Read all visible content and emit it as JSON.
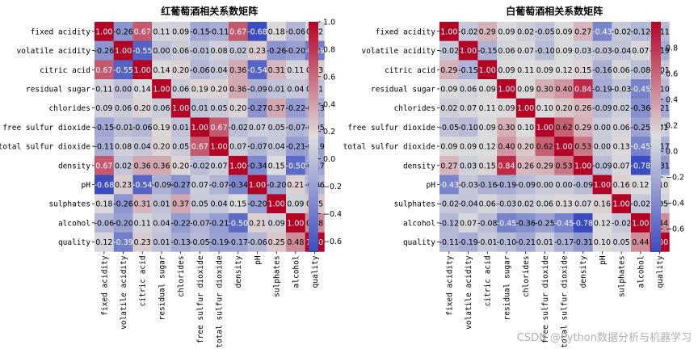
{
  "watermark": "CSDN @Python数据分析与机器学习",
  "colors": {
    "low": "#3b4cc0",
    "mid": "#dddddd",
    "high": "#b40426"
  },
  "chart_data": [
    {
      "type": "heatmap",
      "title": "红葡萄酒相关系数矩阵",
      "labels": [
        "fixed acidity",
        "volatile acidity",
        "citric acid",
        "residual sugar",
        "chlorides",
        "free sulfur dioxide",
        "total sulfur dioxide",
        "density",
        "pH",
        "sulphates",
        "alcohol",
        "quality"
      ],
      "matrix": [
        [
          1.0,
          -0.26,
          0.67,
          0.11,
          0.09,
          -0.15,
          -0.11,
          0.67,
          -0.68,
          0.18,
          -0.06,
          0.12
        ],
        [
          -0.26,
          1.0,
          -0.55,
          0.0,
          0.06,
          -0.01,
          0.08,
          0.02,
          0.23,
          -0.26,
          -0.2,
          -0.39
        ],
        [
          0.67,
          -0.55,
          1.0,
          0.14,
          0.2,
          -0.06,
          0.04,
          0.36,
          -0.54,
          0.31,
          0.11,
          0.23
        ],
        [
          0.11,
          0.0,
          0.14,
          1.0,
          0.06,
          0.19,
          0.2,
          0.36,
          -0.09,
          0.01,
          0.04,
          0.01
        ],
        [
          0.09,
          0.06,
          0.2,
          0.06,
          1.0,
          0.01,
          0.05,
          0.2,
          -0.27,
          0.37,
          -0.22,
          -0.13
        ],
        [
          -0.15,
          -0.01,
          -0.06,
          0.19,
          0.01,
          1.0,
          0.67,
          -0.02,
          0.07,
          0.05,
          -0.07,
          -0.05
        ],
        [
          -0.11,
          0.08,
          0.04,
          0.2,
          0.05,
          0.67,
          1.0,
          0.07,
          -0.07,
          0.04,
          -0.21,
          -0.19
        ],
        [
          0.67,
          0.02,
          0.36,
          0.36,
          0.2,
          -0.02,
          0.07,
          1.0,
          -0.34,
          0.15,
          -0.5,
          -0.17
        ],
        [
          -0.68,
          0.23,
          -0.54,
          -0.09,
          -0.27,
          0.07,
          -0.07,
          -0.34,
          1.0,
          -0.2,
          0.21,
          -0.06
        ],
        [
          0.18,
          -0.26,
          0.31,
          0.01,
          0.37,
          0.05,
          0.04,
          0.15,
          -0.2,
          1.0,
          0.09,
          0.25
        ],
        [
          -0.06,
          -0.2,
          0.11,
          0.04,
          -0.22,
          -0.07,
          -0.21,
          -0.5,
          0.21,
          0.09,
          1.0,
          0.48
        ],
        [
          0.12,
          -0.39,
          0.23,
          0.01,
          -0.13,
          -0.05,
          -0.19,
          -0.17,
          -0.06,
          0.25,
          0.48,
          1.0
        ]
      ],
      "vmin": -0.68,
      "vmax": 1.0,
      "colorbar_ticks": [
        1.0,
        0.8,
        0.6,
        0.4,
        0.2,
        0.0,
        -0.2,
        -0.4,
        -0.6
      ]
    },
    {
      "type": "heatmap",
      "title": "白葡萄酒相关系数矩阵",
      "labels": [
        "fixed acidity",
        "volatile acidity",
        "citric acid",
        "residual sugar",
        "chlorides",
        "free sulfur dioxide",
        "total sulfur dioxide",
        "density",
        "pH",
        "sulphates",
        "alcohol",
        "quality"
      ],
      "matrix": [
        [
          1.0,
          -0.02,
          0.29,
          0.09,
          0.02,
          -0.05,
          0.09,
          0.27,
          -0.43,
          -0.02,
          -0.12,
          -0.11
        ],
        [
          -0.02,
          1.0,
          -0.15,
          0.06,
          0.07,
          -0.1,
          0.09,
          0.03,
          -0.03,
          -0.04,
          0.07,
          -0.19
        ],
        [
          0.29,
          -0.15,
          1.0,
          0.09,
          0.11,
          0.09,
          0.12,
          0.15,
          -0.16,
          0.06,
          -0.08,
          -0.01
        ],
        [
          0.09,
          0.06,
          0.09,
          1.0,
          0.09,
          0.3,
          0.4,
          0.84,
          -0.19,
          -0.03,
          -0.45,
          -0.1
        ],
        [
          0.02,
          0.07,
          0.11,
          0.09,
          1.0,
          0.1,
          0.2,
          0.26,
          -0.09,
          0.02,
          -0.36,
          -0.21
        ],
        [
          -0.05,
          -0.1,
          0.09,
          0.3,
          0.1,
          1.0,
          0.62,
          0.29,
          0.0,
          0.06,
          -0.25,
          0.01
        ],
        [
          0.09,
          0.09,
          0.12,
          0.4,
          0.2,
          0.62,
          1.0,
          0.53,
          0.0,
          0.13,
          -0.45,
          -0.17
        ],
        [
          0.27,
          0.03,
          0.15,
          0.84,
          0.26,
          0.29,
          0.53,
          1.0,
          -0.09,
          0.07,
          -0.78,
          -0.31
        ],
        [
          -0.43,
          -0.03,
          -0.16,
          -0.19,
          -0.09,
          0.0,
          0.0,
          -0.09,
          1.0,
          0.16,
          0.12,
          0.1
        ],
        [
          -0.02,
          -0.04,
          0.06,
          -0.03,
          0.02,
          0.06,
          0.13,
          0.07,
          0.16,
          1.0,
          -0.02,
          0.05
        ],
        [
          -0.12,
          0.07,
          -0.08,
          -0.45,
          -0.36,
          -0.25,
          -0.45,
          -0.78,
          0.12,
          -0.02,
          1.0,
          0.44
        ],
        [
          -0.11,
          -0.19,
          -0.01,
          -0.1,
          -0.21,
          0.01,
          -0.17,
          -0.31,
          0.1,
          0.05,
          0.44,
          1.0
        ]
      ],
      "vmin": -0.78,
      "vmax": 1.0,
      "colorbar_ticks": [
        0.8,
        0.6,
        0.4,
        0.2,
        0.0,
        -0.2,
        -0.4,
        -0.6
      ]
    }
  ]
}
